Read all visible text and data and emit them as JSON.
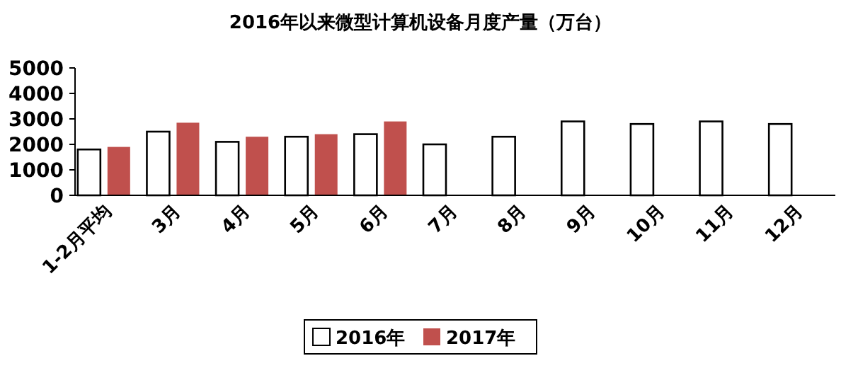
{
  "chart_data": {
    "type": "bar",
    "title": "2016年以来微型计算机设备月度产量（万台）",
    "categories": [
      "1-2月平均",
      "3月",
      "4月",
      "5月",
      "6月",
      "7月",
      "8月",
      "9月",
      "10月",
      "11月",
      "12月"
    ],
    "series": [
      {
        "name": "2016年",
        "color": "#ffffff",
        "values": [
          1800,
          2500,
          2100,
          2300,
          2400,
          2000,
          2300,
          2900,
          2800,
          2900,
          2800
        ]
      },
      {
        "name": "2017年",
        "color": "#c0504d",
        "values": [
          1900,
          2850,
          2300,
          2400,
          2900,
          null,
          null,
          null,
          null,
          null,
          null
        ]
      }
    ],
    "ylim": [
      0,
      5000
    ],
    "yticks": [
      0,
      1000,
      2000,
      3000,
      4000,
      5000
    ],
    "legend": "bottom"
  }
}
